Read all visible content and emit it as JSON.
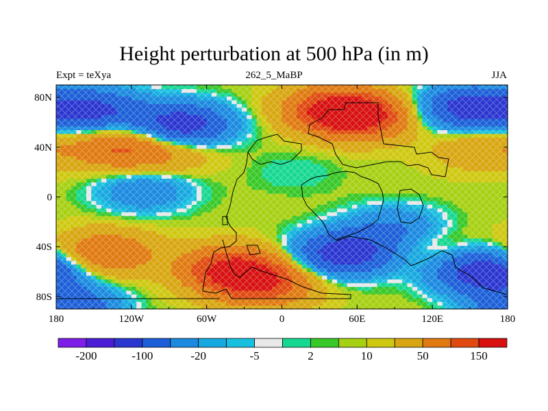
{
  "chart_data": {
    "type": "heatmap",
    "title": "Height perturbation at 500 hPa (in m)",
    "left_string": "Expt = teXya",
    "center_string": "262_5_MaBP",
    "right_string": "JJA",
    "x_ticks": [
      {
        "value": -180,
        "label": "180"
      },
      {
        "value": -120,
        "label": "120W"
      },
      {
        "value": -60,
        "label": "60W"
      },
      {
        "value": 0,
        "label": "0"
      },
      {
        "value": 60,
        "label": "60E"
      },
      {
        "value": 120,
        "label": "120E"
      },
      {
        "value": 180,
        "label": "180"
      }
    ],
    "y_ticks": [
      {
        "value": 80,
        "label": "80N"
      },
      {
        "value": 40,
        "label": "40N"
      },
      {
        "value": 0,
        "label": "0"
      },
      {
        "value": -40,
        "label": "40S"
      },
      {
        "value": -80,
        "label": "80S"
      }
    ],
    "xlim": [
      -180,
      180
    ],
    "ylim": [
      -90,
      90
    ],
    "colorbar": {
      "colors": [
        "#7e1fe8",
        "#4b1ed6",
        "#2a36d0",
        "#1c5fd8",
        "#1b8ae0",
        "#16a8e0",
        "#18c0e0",
        "#e8e8e8",
        "#16d890",
        "#38c828",
        "#a6d012",
        "#cfc810",
        "#d8a610",
        "#e07a10",
        "#e04a10",
        "#d81010"
      ],
      "tick_labels": [
        "-200",
        "-100",
        "-20",
        "-5",
        "2",
        "10",
        "50",
        "150"
      ]
    },
    "anomaly_centers": [
      {
        "lon": -150,
        "lat": 70,
        "value": -120
      },
      {
        "lon": -80,
        "lat": 58,
        "value": -150
      },
      {
        "lon": 150,
        "lat": 72,
        "value": -140
      },
      {
        "lon": 60,
        "lat": 65,
        "value": 170
      },
      {
        "lon": 40,
        "lat": 72,
        "value": 110
      },
      {
        "lon": -130,
        "lat": 40,
        "value": 90
      },
      {
        "lon": -90,
        "lat": 38,
        "value": 45
      },
      {
        "lon": 160,
        "lat": 40,
        "value": 40
      },
      {
        "lon": -110,
        "lat": 5,
        "value": -50
      },
      {
        "lon": 10,
        "lat": 20,
        "value": -10
      },
      {
        "lon": -140,
        "lat": -45,
        "value": 90
      },
      {
        "lon": -40,
        "lat": -58,
        "value": 160
      },
      {
        "lon": -15,
        "lat": -70,
        "value": 120
      },
      {
        "lon": 50,
        "lat": -45,
        "value": -150
      },
      {
        "lon": 160,
        "lat": -60,
        "value": -150
      },
      {
        "lon": 120,
        "lat": -40,
        "value": 20
      },
      {
        "lon": 90,
        "lat": -25,
        "value": -60
      },
      {
        "lon": -170,
        "lat": -88,
        "value": -100
      }
    ]
  }
}
